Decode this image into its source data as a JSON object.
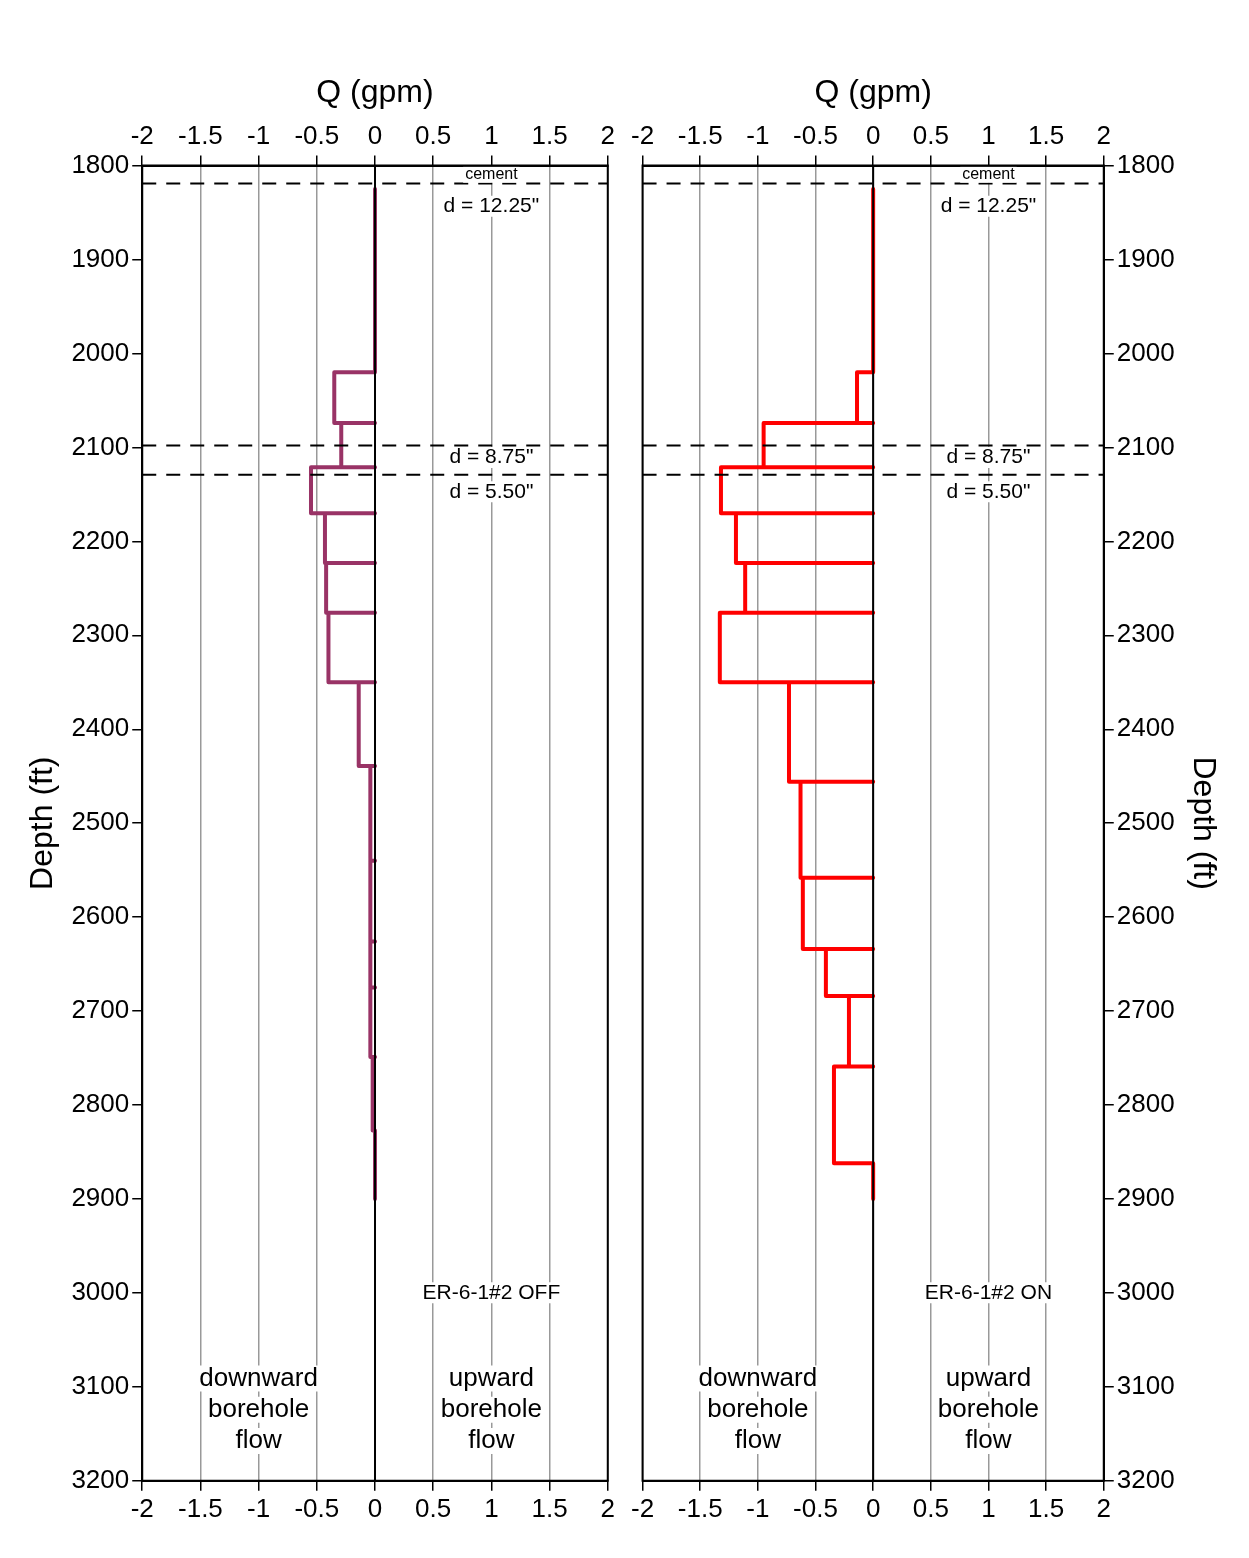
{
  "chart_data": [
    {
      "type": "line",
      "x2label": "Q (gpm)",
      "ylabel": "Depth (ft)",
      "xlim": [
        -2,
        2
      ],
      "xticks": [
        -2,
        -1.5,
        -1,
        -0.5,
        0,
        0.5,
        1,
        1.5,
        2
      ],
      "x2lim": [
        -2,
        2
      ],
      "x2ticks": [
        -2,
        -1.5,
        -1,
        -0.5,
        0,
        0.5,
        1,
        1.5,
        2
      ],
      "ylim": [
        3200,
        1800
      ],
      "yticks": [
        1800,
        1900,
        2000,
        2100,
        2200,
        2300,
        2400,
        2500,
        2600,
        2700,
        2800,
        2900,
        3000,
        3100,
        3200
      ],
      "grid": "x",
      "legend": false,
      "marker": "none",
      "line_style": "solid",
      "series": [
        {
          "color": "#993366",
          "x": [
            0,
            0,
            -0.35,
            -0.35,
            0,
            -0.29,
            -0.29,
            0,
            -0.55,
            -0.55,
            0,
            -0.43,
            -0.43,
            0,
            -0.42,
            -0.42,
            0,
            -0.4,
            -0.4,
            0,
            -0.14,
            -0.14,
            0,
            -0.04,
            -0.04,
            0,
            -0.04,
            -0.04,
            0,
            -0.04,
            -0.04,
            0,
            -0.04,
            -0.04,
            0,
            -0.02,
            -0.02,
            0,
            0
          ],
          "values": [
            1825,
            2020,
            2020,
            2074,
            2074,
            2074,
            2121,
            2121,
            2121,
            2170,
            2170,
            2170,
            2223,
            2223,
            2223,
            2276,
            2276,
            2276,
            2350,
            2350,
            2350,
            2439,
            2439,
            2439,
            2540,
            2540,
            2540,
            2626,
            2626,
            2626,
            2675,
            2675,
            2675,
            2749,
            2749,
            2749,
            2827,
            2827,
            2900
          ]
        }
      ],
      "ref_lines": [
        {
          "axis": "x",
          "value": 0,
          "line_style": "solid",
          "color": "#000000"
        },
        {
          "axis": "y",
          "value": 1819,
          "line_style": "dashed",
          "color": "#000000"
        },
        {
          "axis": "y",
          "value": 2098,
          "line_style": "dashed",
          "color": "#000000"
        },
        {
          "axis": "y",
          "value": 2129,
          "line_style": "dashed",
          "color": "#000000"
        }
      ],
      "annotations": [
        "cement",
        "d = 12.25\"",
        "d = 8.75\"",
        "d = 5.50\"",
        "ER-6-1#2 OFF",
        "downward\nborehole\nflow",
        "upward\nborehole\nflow"
      ]
    },
    {
      "type": "line",
      "x2label": "Q (gpm)",
      "y2label": "Depth (ft)",
      "xlim": [
        -2,
        2
      ],
      "xticks": [
        -2,
        -1.5,
        -1,
        -0.5,
        0,
        0.5,
        1,
        1.5,
        2
      ],
      "x2lim": [
        -2,
        2
      ],
      "x2ticks": [
        -2,
        -1.5,
        -1,
        -0.5,
        0,
        0.5,
        1,
        1.5,
        2
      ],
      "y2lim": [
        3200,
        1800
      ],
      "y2ticks": [
        1800,
        1900,
        2000,
        2100,
        2200,
        2300,
        2400,
        2500,
        2600,
        2700,
        2800,
        2900,
        3000,
        3100,
        3200
      ],
      "grid": "x",
      "legend": false,
      "marker": "none",
      "line_style": "solid",
      "series": [
        {
          "color": "#ff0000",
          "axis": "y2",
          "x": [
            0,
            0,
            -0.14,
            -0.14,
            0,
            -0.95,
            -0.95,
            0,
            -1.32,
            -1.32,
            0,
            -1.19,
            -1.19,
            0,
            -1.11,
            -1.11,
            0,
            -1.33,
            -1.33,
            0,
            -0.73,
            -0.73,
            0,
            -0.63,
            -0.63,
            0,
            -0.61,
            -0.61,
            0,
            -0.41,
            -0.41,
            0,
            -0.21,
            -0.21,
            0,
            -0.34,
            -0.34,
            0,
            0
          ],
          "values": [
            1825,
            2020,
            2020,
            2074,
            2074,
            2074,
            2121,
            2121,
            2121,
            2170,
            2170,
            2170,
            2223,
            2223,
            2223,
            2276,
            2276,
            2276,
            2350,
            2350,
            2350,
            2456,
            2456,
            2456,
            2558,
            2558,
            2558,
            2634,
            2634,
            2634,
            2684,
            2684,
            2684,
            2759,
            2759,
            2759,
            2862,
            2862,
            2900
          ]
        }
      ],
      "ref_lines": [
        {
          "axis": "x",
          "value": 0,
          "line_style": "solid",
          "color": "#000000"
        },
        {
          "axis": "y2",
          "value": 1819,
          "line_style": "dashed",
          "color": "#000000"
        },
        {
          "axis": "y2",
          "value": 2098,
          "line_style": "dashed",
          "color": "#000000"
        },
        {
          "axis": "y2",
          "value": 2129,
          "line_style": "dashed",
          "color": "#000000"
        }
      ],
      "annotations": [
        "cement",
        "d = 12.25\"",
        "d = 8.75\"",
        "d = 5.50\"",
        "ER-6-1#2 ON",
        "downward\nborehole\nflow",
        "upward\nborehole\nflow"
      ]
    }
  ]
}
